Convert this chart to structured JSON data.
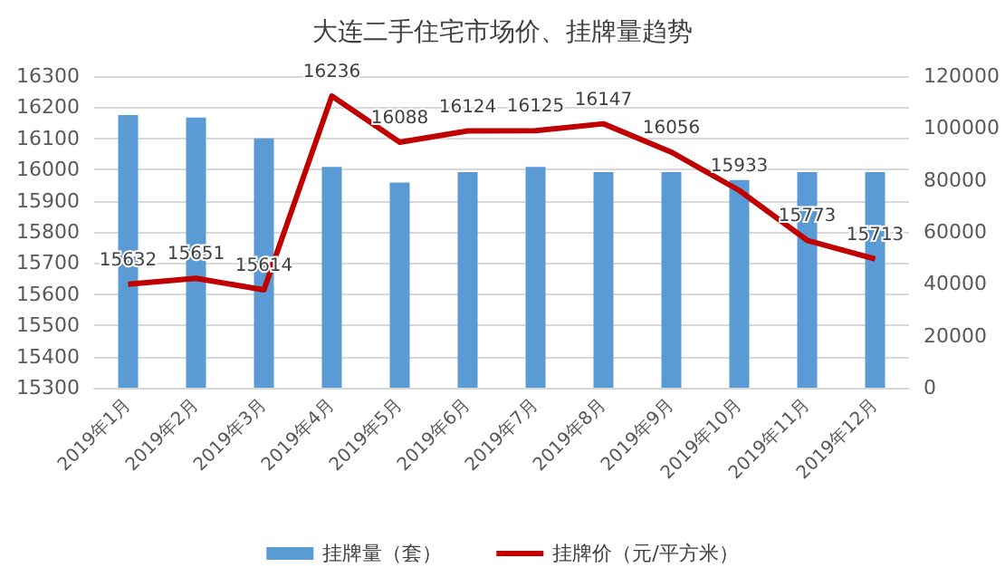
{
  "chart_data": {
    "type": "line",
    "title": "大连二手住宅市场价、挂牌量趋势",
    "categories": [
      "2019年1月",
      "2019年2月",
      "2019年3月",
      "2019年4月",
      "2019年5月",
      "2019年6月",
      "2019年7月",
      "2019年8月",
      "2019年9月",
      "2019年10月",
      "2019年11月",
      "2019年12月"
    ],
    "series": [
      {
        "name": "挂牌量（套）",
        "type": "bar",
        "axis": "y2",
        "color": "#5b9bd5",
        "values": [
          105000,
          104000,
          96000,
          85000,
          79000,
          83000,
          85000,
          83000,
          83000,
          80000,
          83000,
          83000
        ]
      },
      {
        "name": "挂牌价（元/平方米）",
        "color": "#c00000",
        "data_labels": true,
        "values": [
          15632,
          15651,
          15614,
          16236,
          16088,
          16124,
          16125,
          16147,
          16056,
          15933,
          15773,
          15713
        ]
      }
    ],
    "ylim": [
      15300,
      16300
    ],
    "yticks": [
      15300,
      15400,
      15500,
      15600,
      15700,
      15800,
      15900,
      16000,
      16100,
      16200,
      16300
    ],
    "y2lim": [
      0,
      120000
    ],
    "y2ticks": [
      0,
      20000,
      40000,
      60000,
      80000,
      100000,
      120000
    ],
    "grid": "y",
    "legend": "bottom",
    "marker": "none",
    "line_style": "solid"
  }
}
